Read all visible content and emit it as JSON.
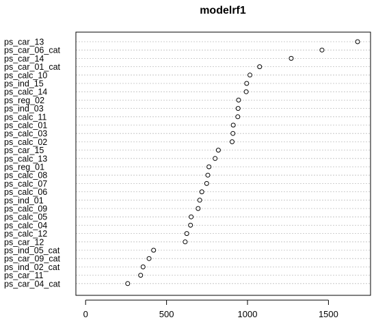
{
  "chart_data": {
    "type": "scatter",
    "title": "modelrf1",
    "xlabel": "",
    "ylabel": "",
    "xlim": [
      -60,
      1760
    ],
    "xticks": [
      0,
      500,
      1000,
      1500
    ],
    "grid": "dotted horizontal lines",
    "variables": [
      "ps_car_13",
      "ps_car_06_cat",
      "ps_car_14",
      "ps_car_01_cat",
      "ps_calc_10",
      "ps_ind_15",
      "ps_calc_14",
      "ps_reg_02",
      "ps_ind_03",
      "ps_calc_11",
      "ps_calc_01",
      "ps_calc_03",
      "ps_calc_02",
      "ps_car_15",
      "ps_calc_13",
      "ps_reg_01",
      "ps_calc_08",
      "ps_calc_07",
      "ps_calc_06",
      "ps_ind_01",
      "ps_calc_09",
      "ps_calc_05",
      "ps_calc_04",
      "ps_calc_12",
      "ps_car_12",
      "ps_ind_05_cat",
      "ps_car_09_cat",
      "ps_ind_02_cat",
      "ps_car_11",
      "ps_car_04_cat"
    ],
    "values": [
      1680,
      1460,
      1270,
      1075,
      1015,
      995,
      992,
      945,
      942,
      940,
      912,
      910,
      905,
      820,
      800,
      762,
      755,
      748,
      718,
      705,
      695,
      652,
      648,
      625,
      615,
      420,
      392,
      355,
      340,
      260
    ]
  }
}
